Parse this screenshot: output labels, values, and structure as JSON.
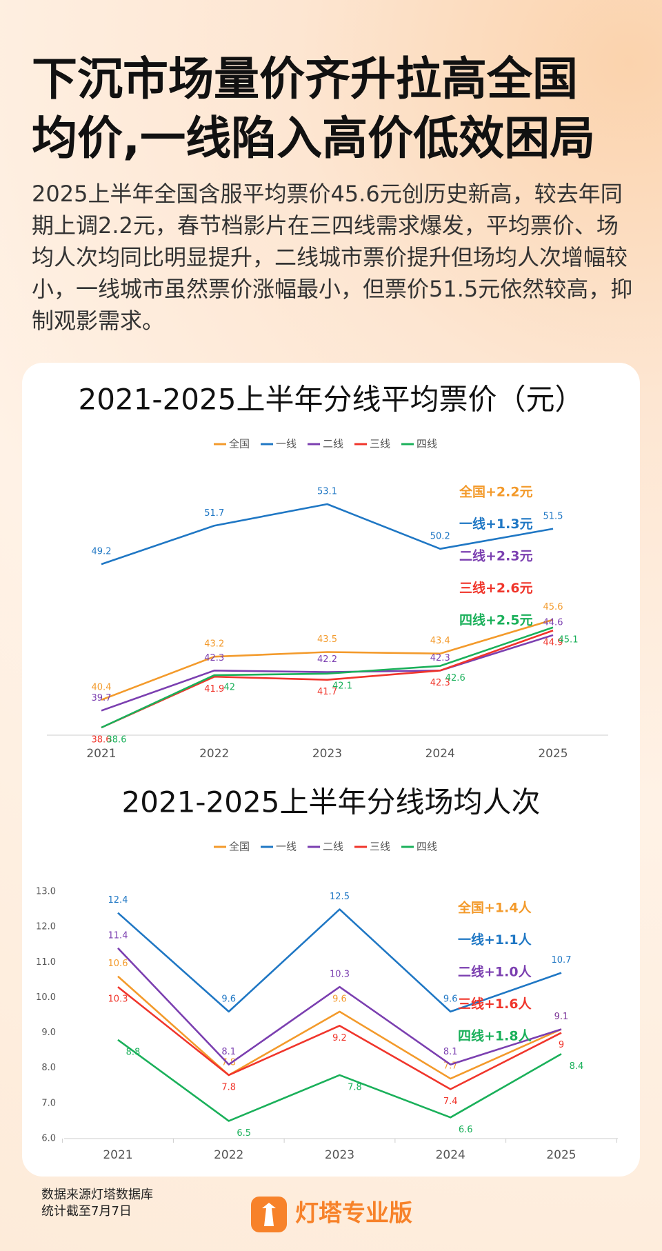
{
  "title": [
    "下沉市场量价齐升拉高全国",
    "均价,一线陷入高价低效困局"
  ],
  "description": "2025上半年全国含服平均票价45.6元创历史新高，较去年同期上调2.2元，春节档影片在三四线需求爆发，平均票价、场均人次均同比明显提升，二线城市票价提升但场均人次增幅较小，一线城市虽然票价涨幅最小，但票价51.5元依然较高，抑制观影需求。",
  "chart_data": [
    {
      "type": "line",
      "title": "2021-2025上半年分线平均票价（元）",
      "categories": [
        "2021",
        "2022",
        "2023",
        "2024",
        "2025"
      ],
      "series": [
        {
          "name": "全国",
          "color": "#f39a2b",
          "values": [
            40.4,
            43.2,
            43.5,
            43.4,
            45.6
          ]
        },
        {
          "name": "一线",
          "color": "#1f77c4",
          "values": [
            49.2,
            51.7,
            53.1,
            50.2,
            51.5
          ]
        },
        {
          "name": "二线",
          "color": "#7b3fb0",
          "values": [
            39.7,
            42.3,
            42.2,
            42.3,
            44.6
          ]
        },
        {
          "name": "三线",
          "color": "#f0352b",
          "values": [
            38.6,
            41.9,
            41.7,
            42.3,
            44.9
          ]
        },
        {
          "name": "四线",
          "color": "#1ab05a",
          "values": [
            38.6,
            42.0,
            42.1,
            42.6,
            45.1
          ]
        }
      ],
      "annotations": [
        {
          "text": "全国+2.2元",
          "color": "#f39a2b"
        },
        {
          "text": "一线+1.3元",
          "color": "#1f77c4"
        },
        {
          "text": "二线+2.3元",
          "color": "#7b3fb0"
        },
        {
          "text": "三线+2.6元",
          "color": "#f0352b"
        },
        {
          "text": "四线+2.5元",
          "color": "#1ab05a"
        }
      ]
    },
    {
      "type": "line",
      "title": "2021-2025上半年分线场均人次",
      "categories": [
        "2021",
        "2022",
        "2023",
        "2024",
        "2025"
      ],
      "series": [
        {
          "name": "全国",
          "color": "#f39a2b",
          "values": [
            10.6,
            7.8,
            9.6,
            7.7,
            9.1
          ]
        },
        {
          "name": "一线",
          "color": "#1f77c4",
          "values": [
            12.4,
            9.6,
            12.5,
            9.6,
            10.7
          ]
        },
        {
          "name": "二线",
          "color": "#7b3fb0",
          "values": [
            11.4,
            8.1,
            10.3,
            8.1,
            9.1
          ]
        },
        {
          "name": "三线",
          "color": "#f0352b",
          "values": [
            10.3,
            7.8,
            9.2,
            7.4,
            9.0
          ]
        },
        {
          "name": "四线",
          "color": "#1ab05a",
          "values": [
            8.8,
            6.5,
            7.8,
            6.6,
            8.4
          ]
        }
      ],
      "ylim": [
        6,
        13
      ],
      "yticks": [
        {
          "value": 6,
          "label": "6.0"
        },
        {
          "value": 7,
          "label": "7.0"
        },
        {
          "value": 8,
          "label": "8.0"
        },
        {
          "value": 9,
          "label": "9.0"
        },
        {
          "value": 10,
          "label": "10.0"
        },
        {
          "value": 11,
          "label": "11.0"
        },
        {
          "value": 12,
          "label": "12.0"
        },
        {
          "value": 13,
          "label": "13.0"
        }
      ],
      "annotations": [
        {
          "text": "全国+1.4人",
          "color": "#f39a2b"
        },
        {
          "text": "一线+1.1人",
          "color": "#1f77c4"
        },
        {
          "text": "二线+1.0人",
          "color": "#7b3fb0"
        },
        {
          "text": "三线+1.6人",
          "color": "#f0352b"
        },
        {
          "text": "四线+1.8人",
          "color": "#1ab05a"
        }
      ]
    }
  ],
  "footer": {
    "source": "数据来源灯塔数据库",
    "date": "统计截至7月7日",
    "brand": "灯塔专业版"
  }
}
